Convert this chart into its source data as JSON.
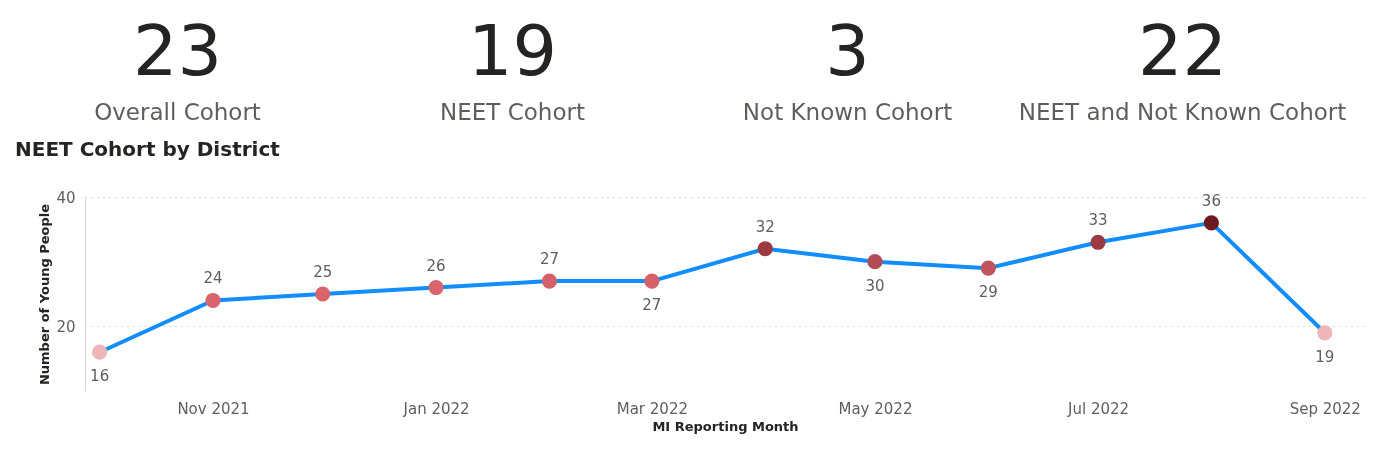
{
  "chart_data": [
    {
      "type": "other",
      "categories": [
        "Overall Cohort",
        "NEET Cohort",
        "Not Known Cohort",
        "NEET and Not Known Cohort"
      ],
      "values": [
        23,
        19,
        3,
        22
      ],
      "data_labels": true
    },
    {
      "type": "line",
      "title": "NEET Cohort by District",
      "xlabel": "MI Reporting Month",
      "ylabel": "Number of Young People",
      "x": [
        "2021-10-01",
        "2021-11-01",
        "2021-12-01",
        "2022-01-01",
        "2022-02-01",
        "2022-03-01",
        "2022-04-01",
        "2022-05-01",
        "2022-06-01",
        "2022-07-01",
        "2022-08-01",
        "2022-09-01"
      ],
      "series": [
        {
          "color": "#118dff",
          "values": [
            16,
            24,
            25,
            26,
            27,
            27,
            32,
            30,
            29,
            33,
            36,
            19
          ],
          "colors": [
            "#efb5b9",
            "#d9646e",
            "#d9646e",
            "#d9646e",
            "#d4606a",
            "#d4606a",
            "#9c3a44",
            "#b24c56",
            "#c0545e",
            "#9c3a44",
            "#6b1a20",
            "#efb5b9"
          ]
        }
      ],
      "xlim": [
        "2021-09-27",
        "2022-09-12"
      ],
      "xticks": [
        {
          "value": "2021-11-01",
          "label": "Nov 2021"
        },
        {
          "value": "2022-01-01",
          "label": "Jan 2022"
        },
        {
          "value": "2022-03-01",
          "label": "Mar 2022"
        },
        {
          "value": "2022-05-01",
          "label": "May 2022"
        },
        {
          "value": "2022-07-01",
          "label": "Jul 2022"
        },
        {
          "value": "2022-09-01",
          "label": "Sep 2022"
        }
      ],
      "ylim": [
        10,
        40
      ],
      "yticks": [
        20,
        40
      ],
      "grid": "y",
      "marker": "circle",
      "line_style": "solid",
      "data_labels": true
    }
  ]
}
